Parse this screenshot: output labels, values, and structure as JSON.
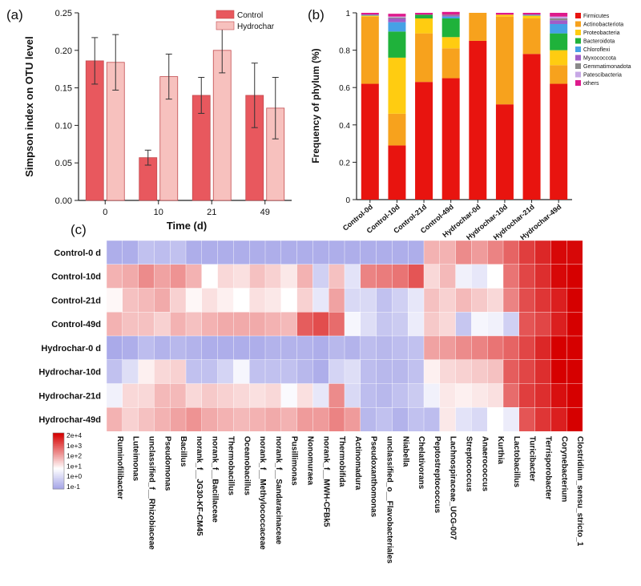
{
  "chart_data": [
    {
      "panel": "(a)",
      "type": "bar",
      "xlabel": "Time (d)",
      "ylabel": "Simpson index on OTU level",
      "ylim": [
        0,
        0.25
      ],
      "yticks": [
        "0.00",
        "0.05",
        "0.10",
        "0.15",
        "0.20",
        "0.25"
      ],
      "categories": [
        "0",
        "10",
        "21",
        "49"
      ],
      "legend_position": "top-right",
      "series": [
        {
          "name": "Control",
          "color": "#e8585e",
          "values": [
            0.186,
            0.057,
            0.14,
            0.14
          ],
          "errors": [
            0.031,
            0.01,
            0.024,
            0.043
          ]
        },
        {
          "name": "Hydrochar",
          "color": "#f7c1be",
          "values": [
            0.184,
            0.165,
            0.2,
            0.123
          ],
          "errors": [
            0.037,
            0.03,
            0.03,
            0.041
          ]
        }
      ]
    },
    {
      "panel": "(b)",
      "type": "bar",
      "stacked": true,
      "ylabel": "Frequency of phylum (%)",
      "ylim": [
        0,
        1
      ],
      "yticks": [
        "0",
        "0.2",
        "0.4",
        "0.6",
        "0.8",
        "1"
      ],
      "categories": [
        "Control-0d",
        "Control-10d",
        "Control-21d",
        "Control-49d",
        "Hydrochar-0d",
        "Hydrochar-10d",
        "Hydrochar-21d",
        "Hydrochar-49d"
      ],
      "legend_position": "right",
      "series": [
        {
          "name": "Firmicutes",
          "color": "#e8140f",
          "values": [
            0.62,
            0.29,
            0.63,
            0.65,
            0.85,
            0.51,
            0.78,
            0.62
          ]
        },
        {
          "name": "Actinobacteriota",
          "color": "#f7a21d",
          "values": [
            0.36,
            0.17,
            0.26,
            0.16,
            0.15,
            0.47,
            0.19,
            0.1
          ]
        },
        {
          "name": "Proteobacteria",
          "color": "#ffcc11",
          "values": [
            0.005,
            0.3,
            0.08,
            0.06,
            0.0,
            0.01,
            0.015,
            0.08
          ]
        },
        {
          "name": "Bacteroidota",
          "color": "#1fb23b",
          "values": [
            0.0,
            0.14,
            0.02,
            0.1,
            0.0,
            0.0,
            0.0,
            0.09
          ]
        },
        {
          "name": "Chloroflexi",
          "color": "#45a1e6",
          "values": [
            0.005,
            0.05,
            0.0,
            0.01,
            0.0,
            0.0,
            0.005,
            0.05
          ]
        },
        {
          "name": "Myxococcota",
          "color": "#a05cc8",
          "values": [
            0.0,
            0.02,
            0.0,
            0.005,
            0.0,
            0.0,
            0.0,
            0.02
          ]
        },
        {
          "name": "Gemmatimonadota",
          "color": "#8a8a8a",
          "values": [
            0.0,
            0.005,
            0.0,
            0.005,
            0.0,
            0.0,
            0.0,
            0.01
          ]
        },
        {
          "name": "Patescibacteria",
          "color": "#c7a8e6",
          "values": [
            0.0,
            0.005,
            0.0,
            0.0,
            0.0,
            0.0,
            0.0,
            0.01
          ]
        },
        {
          "name": "others",
          "color": "#de1a8c",
          "values": [
            0.01,
            0.015,
            0.01,
            0.015,
            0.0,
            0.01,
            0.01,
            0.02
          ]
        }
      ]
    },
    {
      "panel": "(c)",
      "type": "heatmap",
      "rows": [
        "Control-0 d",
        "Control-10d",
        "Control-21d",
        "Control-49d",
        "Hydrochar-0 d",
        "Hydrochar-10d",
        "Hydrochar-21d",
        "Hydrochar-49d"
      ],
      "columns": [
        "Ruminofilibacter",
        "Luteimonas",
        "unclassified_f__Rhizobiaceae",
        "Pseudomonas",
        "Bacillus",
        "norank_f__JG30-KF-CM45",
        "norank_f__Bacillaceae",
        "Thermobacillus",
        "Oceanobacillus",
        "norank_f__Methylococcaceae",
        "norank_f__Sandaracinaceae",
        "Pusillimonas",
        "Nonomuraea",
        "norank_f__MWH-CFBk5",
        "Thermobifida",
        "Actinomadura",
        "Pseudoxanthomonas",
        "unclassified_o__Flavobacteriales",
        "Niabella",
        "Chelativorans",
        "Peptostreptococcus",
        "Lachnospiraceae_UCG-007",
        "Streptococcus",
        "Anaerococcus",
        "Kurthia",
        "Lactobacillus",
        "Turicibacter",
        "Terrisporobacter",
        "Corynebacterium",
        "Clostridium_sensu_stricto_1"
      ],
      "scale": "log10",
      "colorbar_ticks": [
        "2e+4",
        "1e+3",
        "1e+2",
        "1e+1",
        "1e+0",
        "1e-1"
      ],
      "values_log10": [
        [
          -0.7,
          -0.7,
          -0.3,
          -0.4,
          -0.3,
          -0.7,
          -0.7,
          -0.7,
          -0.7,
          -0.7,
          -0.7,
          -0.7,
          -0.7,
          -0.7,
          -0.7,
          -0.7,
          -0.7,
          -0.7,
          -0.7,
          -0.7,
          2.0,
          2.0,
          2.5,
          2.3,
          2.6,
          3.0,
          3.5,
          3.8,
          4.2,
          4.2
        ],
        [
          2.0,
          2.1,
          2.5,
          2.2,
          2.4,
          2.0,
          1.0,
          1.5,
          1.4,
          1.8,
          1.6,
          1.3,
          2.0,
          0.0,
          1.8,
          0.4,
          2.6,
          2.7,
          2.8,
          3.2,
          1.5,
          1.9,
          0.7,
          0.5,
          1.0,
          2.8,
          3.4,
          3.7,
          4.2,
          4.3
        ],
        [
          1.1,
          1.8,
          1.9,
          2.1,
          1.6,
          1.1,
          1.4,
          1.2,
          1.0,
          1.4,
          1.3,
          1.0,
          1.6,
          0.5,
          2.2,
          0.2,
          0.2,
          -0.3,
          0.0,
          0.5,
          1.8,
          1.6,
          1.9,
          1.7,
          1.5,
          2.6,
          3.3,
          3.6,
          3.9,
          4.3
        ],
        [
          2.0,
          1.8,
          1.8,
          1.6,
          2.0,
          1.8,
          2.0,
          2.1,
          2.1,
          2.1,
          2.0,
          1.9,
          3.1,
          3.3,
          2.9,
          0.8,
          0.3,
          -0.2,
          -0.1,
          0.6,
          1.7,
          1.5,
          -0.2,
          0.8,
          0.7,
          0.0,
          3.2,
          3.4,
          3.9,
          4.3
        ],
        [
          -0.8,
          -0.7,
          -0.4,
          -0.6,
          -0.5,
          -0.6,
          -0.7,
          -0.7,
          -0.7,
          -0.7,
          -0.6,
          -0.6,
          -0.6,
          -0.7,
          -0.5,
          -0.6,
          -0.4,
          -0.5,
          -0.4,
          -0.3,
          2.2,
          2.3,
          2.5,
          2.6,
          2.8,
          3.0,
          3.4,
          3.8,
          4.3,
          4.3
        ],
        [
          -0.3,
          0.3,
          1.2,
          1.5,
          1.6,
          -0.3,
          -0.3,
          0.1,
          0.8,
          -0.3,
          -0.3,
          -0.3,
          -0.5,
          -0.7,
          0.1,
          0.3,
          -0.4,
          -0.5,
          -0.5,
          -0.3,
          1.2,
          1.5,
          1.6,
          1.7,
          1.8,
          3.1,
          3.4,
          3.7,
          4.3,
          4.3
        ],
        [
          0.7,
          1.5,
          1.5,
          1.9,
          1.9,
          1.5,
          1.7,
          1.6,
          1.5,
          1.4,
          1.5,
          0.9,
          1.4,
          0.5,
          2.5,
          0.2,
          -0.4,
          -0.5,
          -0.3,
          -0.1,
          0.7,
          1.3,
          1.2,
          1.3,
          1.4,
          2.9,
          3.5,
          3.7,
          4.1,
          4.3
        ],
        [
          2.0,
          1.6,
          1.8,
          2.0,
          2.2,
          2.4,
          2.1,
          2.0,
          1.9,
          2.0,
          2.1,
          2.0,
          2.3,
          2.3,
          2.6,
          2.3,
          -0.5,
          -0.3,
          -0.6,
          -0.3,
          -0.4,
          1.3,
          0.4,
          0.2,
          1.0,
          0.6,
          3.2,
          3.6,
          3.9,
          4.3
        ]
      ]
    }
  ]
}
